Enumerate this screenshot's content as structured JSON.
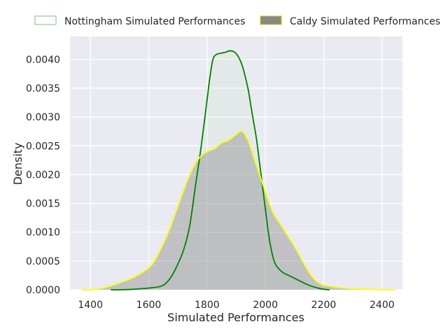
{
  "chart_data": {
    "type": "area",
    "xlabel": "Simulated Performances",
    "ylabel": "Density",
    "xlim": [
      1330,
      2470
    ],
    "ylim": [
      0,
      0.0044
    ],
    "xticks": [
      1400,
      1600,
      1800,
      2000,
      2200,
      2400
    ],
    "yticks": [
      0,
      0.0005,
      0.001,
      0.0015,
      0.002,
      0.0025,
      0.003,
      0.0035,
      0.004
    ],
    "xtick_labels": [
      "1400",
      "1600",
      "1800",
      "2000",
      "2200",
      "2400"
    ],
    "ytick_labels": [
      "0.0000",
      "0.0005",
      "0.0010",
      "0.0015",
      "0.0020",
      "0.0025",
      "0.0030",
      "0.0035",
      "0.0040"
    ],
    "grid": true,
    "legend_position": "top",
    "colors": {
      "background": "#eaeaf2",
      "grid": "#ffffff"
    },
    "series": [
      {
        "name": "Nottingham Simulated Performances",
        "line_color": "#008000",
        "fill_color": "#cfe6cf",
        "x": [
          1470,
          1500,
          1550,
          1600,
          1640,
          1660,
          1680,
          1700,
          1720,
          1740,
          1760,
          1780,
          1800,
          1810,
          1820,
          1830,
          1840,
          1860,
          1880,
          1900,
          1920,
          1940,
          1950,
          1960,
          1970,
          1980,
          1990,
          2000,
          2010,
          2020,
          2030,
          2040,
          2060,
          2080,
          2100,
          2120,
          2140,
          2160,
          2180,
          2200,
          2220
        ],
        "y": [
          0.0,
          0.0,
          1e-05,
          3e-05,
          6e-05,
          0.00012,
          0.00025,
          0.00045,
          0.0007,
          0.0011,
          0.0018,
          0.0025,
          0.0033,
          0.0037,
          0.004,
          0.00408,
          0.0041,
          0.00412,
          0.00415,
          0.0041,
          0.0039,
          0.0035,
          0.0032,
          0.0029,
          0.0026,
          0.0022,
          0.0018,
          0.0014,
          0.001,
          0.0007,
          0.0005,
          0.0004,
          0.0003,
          0.00025,
          0.0002,
          0.00015,
          0.0001,
          6e-05,
          3e-05,
          1e-05,
          0.0
        ]
      },
      {
        "name": "Caldy Simulated Performances",
        "line_color": "#ffff00",
        "fill_color": "#888888",
        "x": [
          1370,
          1400,
          1450,
          1500,
          1550,
          1600,
          1625,
          1650,
          1675,
          1700,
          1725,
          1750,
          1775,
          1800,
          1825,
          1850,
          1875,
          1900,
          1920,
          1940,
          1960,
          1980,
          2000,
          2025,
          2050,
          2075,
          2100,
          2125,
          2150,
          2175,
          2200,
          2250,
          2300,
          2350,
          2400,
          2445
        ],
        "y": [
          0.0,
          0.0,
          4e-05,
          0.00012,
          0.00022,
          0.00038,
          0.00055,
          0.0008,
          0.0011,
          0.00145,
          0.0018,
          0.0021,
          0.0023,
          0.0024,
          0.00245,
          0.00255,
          0.0026,
          0.0027,
          0.00275,
          0.0026,
          0.0023,
          0.002,
          0.0017,
          0.00135,
          0.00115,
          0.00095,
          0.00075,
          0.00052,
          0.0003,
          0.00015,
          8e-05,
          4e-05,
          2e-05,
          1e-05,
          0.0,
          0.0
        ]
      }
    ]
  }
}
